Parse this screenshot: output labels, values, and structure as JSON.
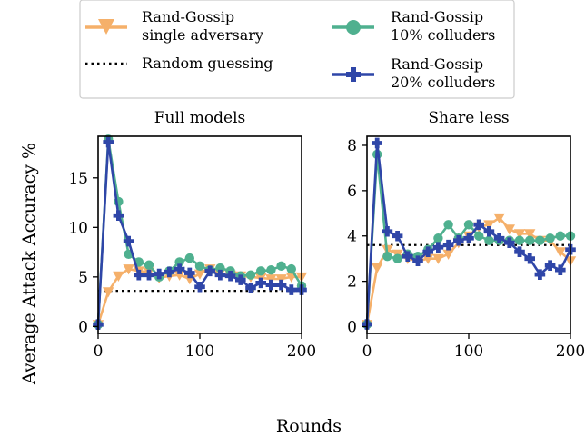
{
  "figure": {
    "xlabel": "Rounds",
    "ylabel": "Average Attack Accuracy %"
  },
  "legend": {
    "placement": "top-center",
    "entries": [
      {
        "series_key": "single",
        "label_line1": "Rand-Gossip",
        "label_line2": "single adversary"
      },
      {
        "series_key": "random",
        "label_line1": "Random guessing",
        "label_line2": ""
      },
      {
        "series_key": "c10",
        "label_line1": "Rand-Gossip",
        "label_line2": "10% colluders"
      },
      {
        "series_key": "c20",
        "label_line1": "Rand-Gossip",
        "label_line2": "20% colluders"
      }
    ]
  },
  "styles": {
    "single": {
      "color": "#f5b06a",
      "marker": "triangle-down"
    },
    "c10": {
      "color": "#4fb08f",
      "marker": "circle"
    },
    "c20": {
      "color": "#2f46a8",
      "marker": "plus"
    },
    "random": {
      "color": "#000000",
      "marker": "none",
      "dash": "dotted"
    }
  },
  "chart_data": [
    {
      "type": "line",
      "title": "Full models",
      "xlim": [
        0,
        200
      ],
      "ylim": [
        -0.7,
        19.2
      ],
      "xticks": [
        0,
        100,
        200
      ],
      "yticks": [
        0,
        5,
        10,
        15
      ],
      "x": [
        0,
        10,
        20,
        30,
        40,
        50,
        60,
        70,
        80,
        90,
        100,
        110,
        120,
        130,
        140,
        150,
        160,
        170,
        180,
        190,
        200
      ],
      "random_guess": 3.6,
      "series": [
        {
          "key": "single",
          "values": [
            0.2,
            3.5,
            5.1,
            5.8,
            5.6,
            5.5,
            4.9,
            5.1,
            5.2,
            4.8,
            5.3,
            5.8,
            5.4,
            5.2,
            5.1,
            5.0,
            4.9,
            4.8,
            4.8,
            5.0,
            5.0
          ]
        },
        {
          "key": "c10",
          "values": [
            0.2,
            18.9,
            12.6,
            7.3,
            6.5,
            6.2,
            5.0,
            5.6,
            6.5,
            6.9,
            6.1,
            5.7,
            5.9,
            5.6,
            5.1,
            5.2,
            5.6,
            5.7,
            6.1,
            5.8,
            4.1
          ]
        },
        {
          "key": "c20",
          "values": [
            0.2,
            18.6,
            11.2,
            8.6,
            5.2,
            5.2,
            5.3,
            5.5,
            5.8,
            5.4,
            4.0,
            5.6,
            5.2,
            5.1,
            4.7,
            3.9,
            4.4,
            4.2,
            4.2,
            3.7,
            3.7
          ]
        }
      ]
    },
    {
      "type": "line",
      "title": "Share less",
      "xlim": [
        0,
        200
      ],
      "ylim": [
        -0.3,
        8.4
      ],
      "xticks": [
        0,
        100,
        200
      ],
      "yticks": [
        0,
        2,
        4,
        6,
        8
      ],
      "x": [
        0,
        10,
        20,
        30,
        40,
        50,
        60,
        70,
        80,
        90,
        100,
        110,
        120,
        130,
        140,
        150,
        160,
        170,
        180,
        190,
        200
      ],
      "random_guess": 3.6,
      "series": [
        {
          "key": "single",
          "values": [
            0.1,
            2.6,
            3.4,
            3.2,
            3.0,
            2.9,
            3.0,
            3.0,
            3.2,
            3.7,
            4.0,
            4.4,
            4.5,
            4.8,
            4.3,
            4.1,
            4.1,
            3.8,
            3.8,
            3.3,
            2.9
          ]
        },
        {
          "key": "c10",
          "values": [
            0.1,
            7.6,
            3.1,
            3.0,
            3.2,
            3.1,
            3.4,
            3.9,
            4.5,
            3.9,
            4.5,
            4.0,
            3.8,
            3.8,
            3.8,
            3.8,
            3.8,
            3.8,
            3.9,
            4.0,
            4.0
          ]
        },
        {
          "key": "c20",
          "values": [
            0.1,
            8.1,
            4.2,
            4.0,
            3.1,
            2.9,
            3.3,
            3.5,
            3.6,
            3.8,
            3.9,
            4.5,
            4.2,
            3.9,
            3.7,
            3.3,
            3.0,
            2.3,
            2.7,
            2.5,
            3.4
          ]
        }
      ]
    }
  ]
}
